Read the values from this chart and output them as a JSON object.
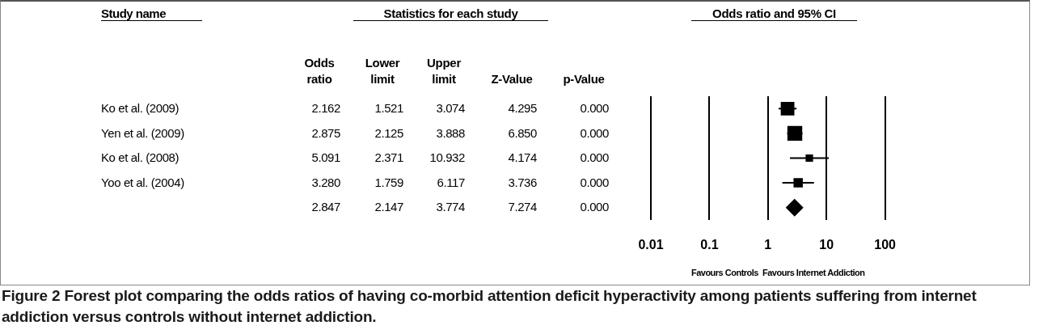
{
  "chart_data": [
    {
      "type": "other",
      "ylabel": "Study name",
      "title": "Statistics for each study",
      "categories": [
        "Odds ratio",
        "Lower limit",
        "Upper limit",
        "Z-Value",
        "p-Value"
      ],
      "y_categories": [
        "Ko et al. (2009)",
        "Yen et al. (2009)",
        "Ko et al. (2008)",
        "Yoo et al. (2004)",
        null
      ],
      "cell_labels": [
        [
          "2.162",
          "1.521",
          "3.074",
          "4.295",
          "0.000"
        ],
        [
          "2.875",
          "2.125",
          "3.888",
          "6.850",
          "0.000"
        ],
        [
          "5.091",
          "2.371",
          "10.932",
          "4.174",
          "0.000"
        ],
        [
          "3.280",
          "1.759",
          "6.117",
          "3.736",
          "0.000"
        ],
        [
          "2.847",
          "2.147",
          "3.774",
          "7.274",
          "0.000"
        ]
      ]
    },
    {
      "type": "scatter",
      "title": "Odds ratio and 95% CI",
      "orientation": "horizontal",
      "categories": [
        null,
        null,
        null,
        null,
        null
      ],
      "xlim": [
        0.01,
        100
      ],
      "xticks": [
        0.01,
        0.1,
        1,
        10,
        100
      ],
      "log": "x",
      "grid": "x",
      "tick_labels": "x",
      "series": [
        {
          "color": "#000000",
          "marker": "square",
          "values": [
            2.162,
            2.875,
            5.091,
            3.28,
            null
          ],
          "sizes": [
            0.84,
            1,
            0.25,
            0.39,
            null
          ],
          "errors": [
            [
              1.521,
              3.074
            ],
            [
              2.125,
              3.888
            ],
            [
              2.371,
              10.932
            ],
            [
              1.759,
              6.117
            ],
            null
          ]
        },
        {
          "color": "#000000",
          "marker": "diamond",
          "values": [
            null,
            null,
            null,
            null,
            2.847
          ],
          "errors": [
            null,
            null,
            null,
            null,
            [
              2.147,
              3.774
            ]
          ]
        }
      ],
      "annotations": [
        "Favours Controls",
        "Favours Internet Addiction",
        "Figure 2 Forest plot comparing the odds ratios of having co-morbid attention deficit hyperactivity among patients suffering from internet addiction versus controls without internet addiction."
      ]
    }
  ]
}
